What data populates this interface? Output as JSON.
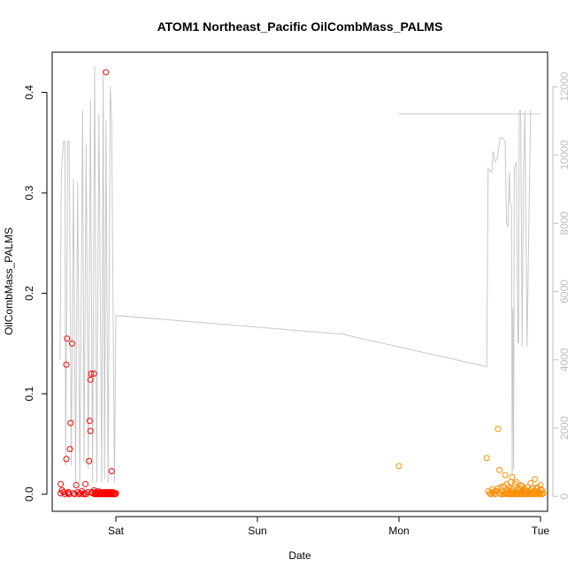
{
  "chart_data": {
    "type": "scatter",
    "title": "ATOM1 Northeast_Pacific OilCombMass_PALMS",
    "xlabel": "Date",
    "ylabel": "OilCombMass_PALMS",
    "x_unit": "days",
    "xlim": [
      -0.45,
      3.05
    ],
    "ylim": [
      -0.017,
      0.44
    ],
    "x_ticks": [
      {
        "label": "Sat",
        "value": 0
      },
      {
        "label": "Sun",
        "value": 1
      },
      {
        "label": "Mon",
        "value": 2
      },
      {
        "label": "Tue",
        "value": 3
      }
    ],
    "y_ticks": [
      {
        "label": "0.0",
        "value": 0.0
      },
      {
        "label": "0.1",
        "value": 0.1
      },
      {
        "label": "0.2",
        "value": 0.2
      },
      {
        "label": "0.3",
        "value": 0.3
      },
      {
        "label": "0.4",
        "value": 0.4
      }
    ],
    "y2_ticks": [
      {
        "label": "0",
        "value": 0
      },
      {
        "label": "2000",
        "value": 2000
      },
      {
        "label": "4000",
        "value": 4000
      },
      {
        "label": "6000",
        "value": 6000
      },
      {
        "label": "8000",
        "value": 8000
      },
      {
        "label": "10000",
        "value": 10000
      },
      {
        "label": "12000",
        "value": 12000
      }
    ],
    "y2lim": [
      -437,
      13010
    ],
    "colors": {
      "series1": "#ff0000",
      "series2": "#ff8c00",
      "altitude": "#c8c8c8"
    },
    "series": [
      {
        "color": "#ff0000",
        "marker": "open-circle",
        "points": [
          [
            -0.39,
            0.01
          ],
          [
            -0.39,
            0.001
          ],
          [
            -0.38,
            0.004
          ],
          [
            -0.37,
            0.002
          ],
          [
            -0.36,
            0.0
          ],
          [
            -0.35,
            0.129
          ],
          [
            -0.345,
            0.155
          ],
          [
            -0.34,
            0.001
          ],
          [
            -0.335,
            0.002
          ],
          [
            -0.33,
            0.0
          ],
          [
            -0.325,
            0.045
          ],
          [
            -0.32,
            0.071
          ],
          [
            -0.31,
            0.15
          ],
          [
            -0.3,
            0.001
          ],
          [
            -0.29,
            0.0
          ],
          [
            -0.28,
            0.009
          ],
          [
            -0.27,
            0.002
          ],
          [
            -0.26,
            0.0
          ],
          [
            -0.25,
            0.001
          ],
          [
            -0.24,
            0.003
          ],
          [
            -0.23,
            0.0
          ],
          [
            -0.22,
            0.001
          ],
          [
            -0.215,
            0.01
          ],
          [
            -0.21,
            0.0
          ],
          [
            -0.2,
            0.002
          ],
          [
            -0.19,
            0.033
          ],
          [
            -0.185,
            0.073
          ],
          [
            -0.18,
            0.063
          ],
          [
            -0.18,
            0.114
          ],
          [
            -0.175,
            0.12
          ],
          [
            -0.17,
            0.002
          ],
          [
            -0.165,
            0.001
          ],
          [
            -0.155,
            0.004
          ],
          [
            -0.15,
            0.0
          ],
          [
            -0.145,
            0.001
          ],
          [
            -0.14,
            0.002
          ],
          [
            -0.135,
            0.0
          ],
          [
            -0.13,
            0.001
          ],
          [
            -0.125,
            0.003
          ],
          [
            -0.12,
            0.0
          ],
          [
            -0.115,
            0.001
          ],
          [
            -0.11,
            0.002
          ],
          [
            -0.105,
            0.0
          ],
          [
            -0.1,
            0.001
          ],
          [
            -0.095,
            0.002
          ],
          [
            -0.09,
            0.0
          ],
          [
            -0.085,
            0.001
          ],
          [
            -0.08,
            0.002
          ],
          [
            -0.075,
            0.0
          ],
          [
            -0.07,
            0.001
          ],
          [
            -0.065,
            0.002
          ],
          [
            -0.06,
            0.0
          ],
          [
            -0.055,
            0.001
          ],
          [
            -0.05,
            0.002
          ],
          [
            -0.045,
            0.0
          ],
          [
            -0.04,
            0.001
          ],
          [
            -0.035,
            0.002
          ],
          [
            -0.03,
            0.0
          ],
          [
            -0.025,
            0.001
          ],
          [
            -0.02,
            0.002
          ],
          [
            -0.015,
            0.0
          ],
          [
            -0.01,
            0.001
          ],
          [
            -0.005,
            0.0
          ],
          [
            0.0,
            0.001
          ],
          [
            -0.155,
            0.12
          ],
          [
            -0.07,
            0.42
          ],
          [
            -0.03,
            0.023
          ],
          [
            -0.35,
            0.035
          ]
        ]
      },
      {
        "color": "#ff8c00",
        "marker": "open-circle",
        "points": [
          [
            2.0,
            0.028
          ],
          [
            2.62,
            0.036
          ],
          [
            2.63,
            0.003
          ],
          [
            2.64,
            0.001
          ],
          [
            2.65,
            0.0
          ],
          [
            2.66,
            0.002
          ],
          [
            2.67,
            0.001
          ],
          [
            2.68,
            0.0
          ],
          [
            2.69,
            0.003
          ],
          [
            2.7,
            0.065
          ],
          [
            2.7,
            0.006
          ],
          [
            2.71,
            0.024
          ],
          [
            2.71,
            0.001
          ],
          [
            2.72,
            0.0
          ],
          [
            2.72,
            0.007
          ],
          [
            2.73,
            0.002
          ],
          [
            2.74,
            0.0
          ],
          [
            2.75,
            0.001
          ],
          [
            2.75,
            0.019
          ],
          [
            2.76,
            0.01
          ],
          [
            2.76,
            0.001
          ],
          [
            2.77,
            0.004
          ],
          [
            2.77,
            0.0
          ],
          [
            2.78,
            0.002
          ],
          [
            2.78,
            0.006
          ],
          [
            2.79,
            0.001
          ],
          [
            2.79,
            0.0
          ],
          [
            2.8,
            0.003
          ],
          [
            2.8,
            0.005
          ],
          [
            2.81,
            0.001
          ],
          [
            2.81,
            0.0
          ],
          [
            2.82,
            0.01
          ],
          [
            2.82,
            0.002
          ],
          [
            2.83,
            0.0
          ],
          [
            2.83,
            0.012
          ],
          [
            2.84,
            0.001
          ],
          [
            2.84,
            0.004
          ],
          [
            2.85,
            0.0
          ],
          [
            2.85,
            0.006
          ],
          [
            2.86,
            0.001
          ],
          [
            2.86,
            0.003
          ],
          [
            2.87,
            0.0
          ],
          [
            2.87,
            0.008
          ],
          [
            2.88,
            0.002
          ],
          [
            2.88,
            0.001
          ],
          [
            2.89,
            0.0
          ],
          [
            2.89,
            0.005
          ],
          [
            2.9,
            0.001
          ],
          [
            2.9,
            0.003
          ],
          [
            2.91,
            0.0
          ],
          [
            2.91,
            0.007
          ],
          [
            2.92,
            0.002
          ],
          [
            2.92,
            0.001
          ],
          [
            2.93,
            0.0
          ],
          [
            2.93,
            0.004
          ],
          [
            2.94,
            0.001
          ],
          [
            2.94,
            0.006
          ],
          [
            2.95,
            0.0
          ],
          [
            2.95,
            0.002
          ],
          [
            2.96,
            0.001
          ],
          [
            2.96,
            0.015
          ],
          [
            2.97,
            0.0
          ],
          [
            2.97,
            0.003
          ],
          [
            2.98,
            0.001
          ],
          [
            2.98,
            0.007
          ],
          [
            2.99,
            0.0
          ],
          [
            2.99,
            0.002
          ],
          [
            3.0,
            0.001
          ],
          [
            3.0,
            0.005
          ],
          [
            3.01,
            0.0
          ],
          [
            3.01,
            0.004
          ],
          [
            3.02,
            0.001
          ],
          [
            2.66,
            0.005
          ],
          [
            2.68,
            0.003
          ],
          [
            2.74,
            0.008
          ],
          [
            2.76,
            0.004
          ],
          [
            2.79,
            0.012
          ],
          [
            2.83,
            0.002
          ],
          [
            2.86,
            0.009
          ],
          [
            2.89,
            0.003
          ],
          [
            2.93,
            0.011
          ],
          [
            2.97,
            0.006
          ],
          [
            3.0,
            0.009
          ],
          [
            2.8,
            0.017
          ]
        ]
      }
    ],
    "altitude_series": {
      "color": "#c8c8c8",
      "axis": "right",
      "points": [
        [
          -0.395,
          4000
        ],
        [
          -0.385,
          9500
        ],
        [
          -0.37,
          10400
        ],
        [
          -0.36,
          10400
        ],
        [
          -0.355,
          900
        ],
        [
          -0.34,
          10400
        ],
        [
          -0.33,
          10400
        ],
        [
          -0.315,
          900
        ],
        [
          -0.3,
          9300
        ],
        [
          -0.285,
          400
        ],
        [
          -0.27,
          9200
        ],
        [
          -0.255,
          400
        ],
        [
          -0.235,
          11300
        ],
        [
          -0.225,
          1000
        ],
        [
          -0.21,
          10300
        ],
        [
          -0.195,
          800
        ],
        [
          -0.18,
          11600
        ],
        [
          -0.165,
          400
        ],
        [
          -0.15,
          12600
        ],
        [
          -0.135,
          400
        ],
        [
          -0.12,
          11200
        ],
        [
          -0.1,
          400
        ],
        [
          -0.09,
          12500
        ],
        [
          -0.08,
          500
        ],
        [
          -0.07,
          11000
        ],
        [
          -0.055,
          400
        ],
        [
          -0.04,
          12000
        ],
        [
          -0.03,
          11000
        ],
        [
          -0.01,
          400
        ],
        [
          0.0,
          5300
        ],
        [
          1.6,
          4750
        ],
        [
          2.62,
          3800
        ],
        [
          2.63,
          9600
        ],
        [
          2.655,
          9500
        ],
        [
          2.665,
          10100
        ],
        [
          2.68,
          9800
        ],
        [
          2.695,
          9900
        ],
        [
          2.715,
          10500
        ],
        [
          2.73,
          10500
        ],
        [
          2.75,
          10400
        ],
        [
          2.76,
          8000
        ],
        [
          2.77,
          7900
        ],
        [
          2.78,
          9500
        ],
        [
          2.785,
          8600
        ],
        [
          2.795,
          8500
        ],
        [
          2.8,
          600
        ],
        [
          2.805,
          5500
        ],
        [
          2.81,
          800
        ],
        [
          2.815,
          9600
        ],
        [
          2.83,
          9800
        ],
        [
          2.84,
          4500
        ],
        [
          2.845,
          4500
        ],
        [
          2.85,
          11300
        ],
        [
          2.86,
          11300
        ],
        [
          2.87,
          4400
        ],
        [
          2.88,
          9400
        ],
        [
          2.89,
          11300
        ],
        [
          2.905,
          4400
        ],
        [
          2.93,
          11300
        ]
      ],
      "flat_segment": [
        [
          2.0,
          11200
        ],
        [
          3.0,
          11200
        ]
      ]
    }
  }
}
